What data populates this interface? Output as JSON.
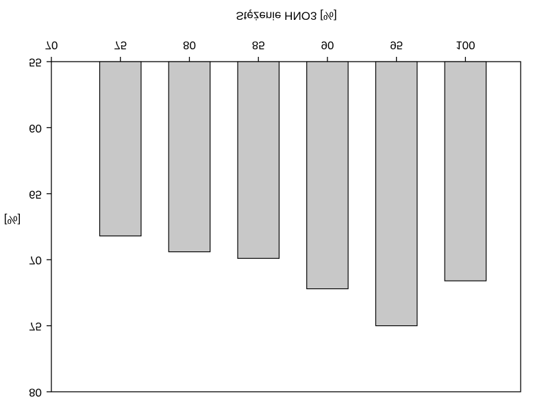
{
  "chart_data": {
    "type": "bar",
    "title": "Stężenie HNO3 [%]",
    "y_label": "[%]",
    "x": [
      75,
      80,
      85,
      90,
      95,
      100
    ],
    "values": [
      68.2,
      69.4,
      69.9,
      72.2,
      75.0,
      71.6
    ],
    "color": "#c8c8c8",
    "xlim": [
      70,
      104
    ],
    "xticks": [
      70,
      75,
      80,
      85,
      90,
      95,
      100
    ],
    "ylim": [
      55,
      80
    ],
    "yticks": [
      55,
      60,
      65,
      70,
      75,
      80
    ],
    "y_inverted": true,
    "text_flipped": true
  }
}
